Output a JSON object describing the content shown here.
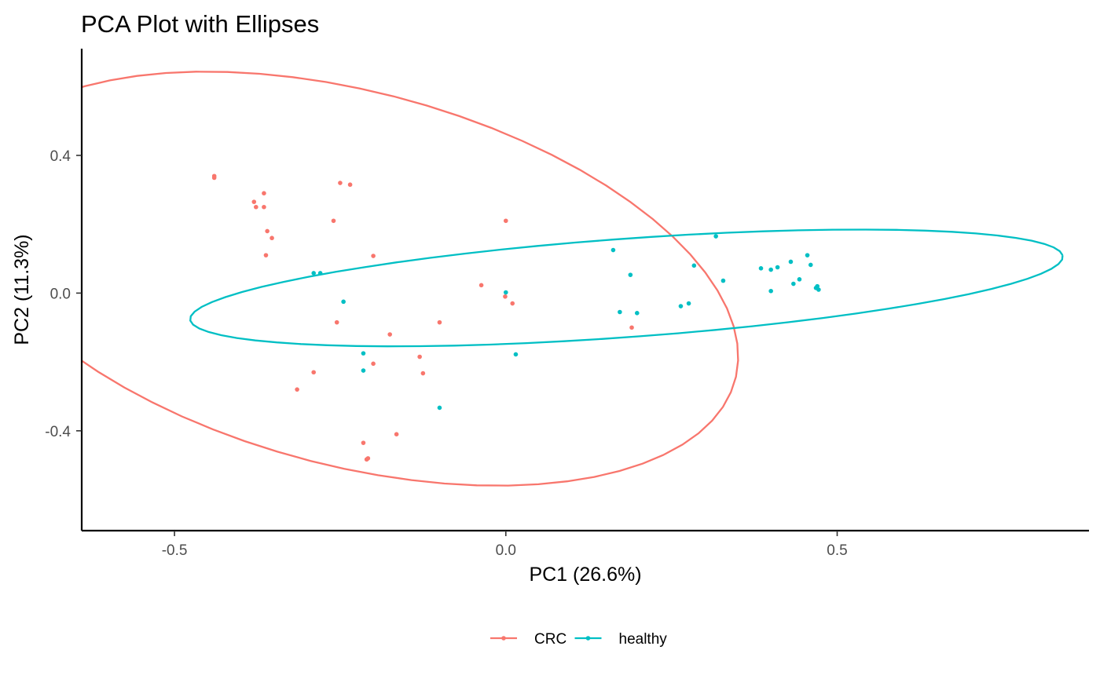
{
  "chart_data": {
    "type": "scatter",
    "title": "PCA Plot with Ellipses",
    "xlabel": "PC1 (26.6%)",
    "ylabel": "PC2 (11.3%)",
    "xlim": [
      -0.64,
      0.88
    ],
    "ylim": [
      -0.69,
      0.71
    ],
    "xticks": [
      -0.5,
      0.0,
      0.5
    ],
    "xtick_labels": [
      "-0.5",
      "0.0",
      "0.5"
    ],
    "yticks": [
      -0.4,
      0.0,
      0.4
    ],
    "ytick_labels": [
      "-0.4",
      "0.0",
      "0.4"
    ],
    "grid": false,
    "legend_position": "bottom",
    "series": [
      {
        "name": "CRC",
        "color": "#F8766D",
        "points": [
          [
            -0.44,
            0.34
          ],
          [
            -0.44,
            0.335
          ],
          [
            -0.38,
            0.265
          ],
          [
            -0.365,
            0.29
          ],
          [
            -0.377,
            0.25
          ],
          [
            -0.365,
            0.25
          ],
          [
            -0.36,
            0.18
          ],
          [
            -0.353,
            0.16
          ],
          [
            -0.362,
            0.11
          ],
          [
            -0.25,
            0.32
          ],
          [
            -0.235,
            0.315
          ],
          [
            -0.26,
            0.21
          ],
          [
            -0.2,
            0.108
          ],
          [
            -0.037,
            0.023
          ],
          [
            -0.001,
            -0.01
          ],
          [
            0.01,
            -0.03
          ],
          [
            0.0,
            0.21
          ],
          [
            -0.255,
            -0.085
          ],
          [
            -0.1,
            -0.085
          ],
          [
            -0.175,
            -0.12
          ],
          [
            -0.2,
            -0.205
          ],
          [
            -0.13,
            -0.185
          ],
          [
            -0.125,
            -0.233
          ],
          [
            -0.29,
            -0.23
          ],
          [
            -0.315,
            -0.28
          ],
          [
            -0.165,
            -0.41
          ],
          [
            -0.215,
            -0.435
          ],
          [
            -0.21,
            -0.483
          ],
          [
            -0.208,
            -0.48
          ],
          [
            0.19,
            -0.1
          ]
        ]
      },
      {
        "name": "healthy",
        "color": "#00BFC4",
        "points": [
          [
            -0.29,
            0.058
          ],
          [
            -0.28,
            0.058
          ],
          [
            -0.245,
            -0.025
          ],
          [
            -0.215,
            -0.175
          ],
          [
            -0.215,
            -0.225
          ],
          [
            0.0,
            0.002
          ],
          [
            0.015,
            -0.178
          ],
          [
            -0.1,
            -0.333
          ],
          [
            0.162,
            0.125
          ],
          [
            0.172,
            -0.055
          ],
          [
            0.188,
            0.053
          ],
          [
            0.198,
            -0.058
          ],
          [
            0.264,
            -0.038
          ],
          [
            0.276,
            -0.03
          ],
          [
            0.284,
            0.08
          ],
          [
            0.317,
            0.165
          ],
          [
            0.328,
            0.036
          ],
          [
            0.385,
            0.072
          ],
          [
            0.4,
            0.068
          ],
          [
            0.4,
            0.006
          ],
          [
            0.41,
            0.075
          ],
          [
            0.43,
            0.091
          ],
          [
            0.434,
            0.027
          ],
          [
            0.443,
            0.04
          ],
          [
            0.455,
            0.11
          ],
          [
            0.46,
            0.082
          ],
          [
            0.47,
            0.02
          ],
          [
            0.472,
            0.01
          ],
          [
            0.468,
            0.015
          ]
        ]
      }
    ],
    "ellipses": [
      {
        "series": "CRC",
        "color": "#F8766D",
        "center": [
          -0.232,
          0.042
        ],
        "axes": [
          0.695,
          0.467
        ],
        "angle_deg": -47.4
      },
      {
        "series": "healthy",
        "color": "#00BFC4",
        "center": [
          0.182,
          0.015
        ],
        "axes": [
          0.665,
          0.142
        ],
        "angle_deg": 8.2
      }
    ]
  }
}
